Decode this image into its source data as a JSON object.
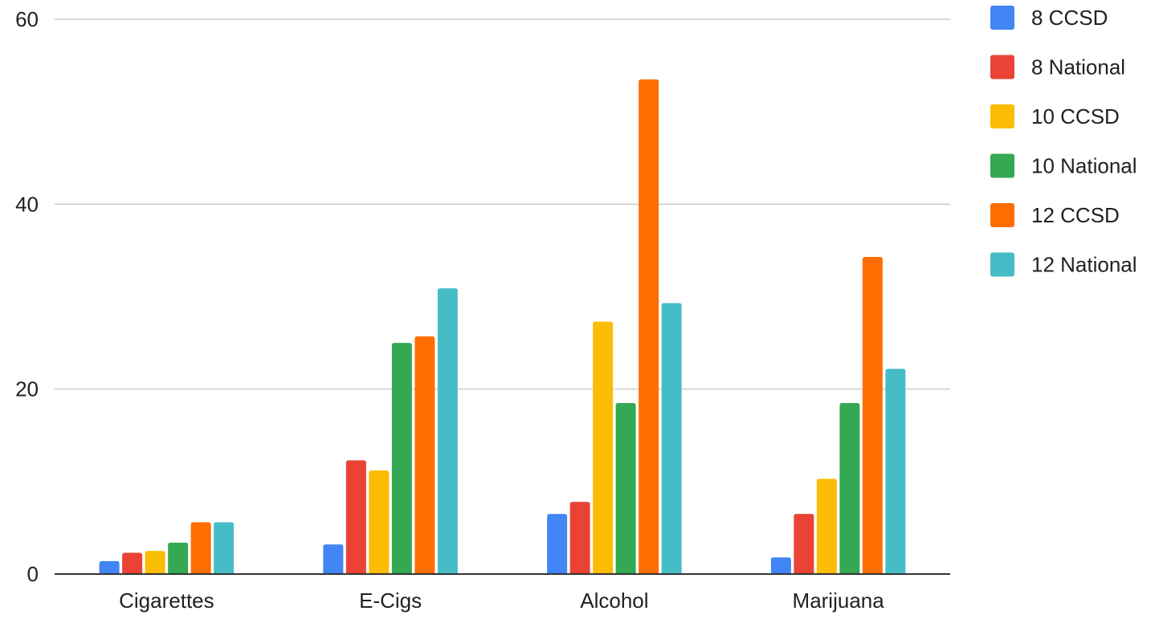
{
  "chart_data": {
    "type": "bar",
    "title": "",
    "xlabel": "",
    "ylabel": "",
    "categories": [
      "Cigarettes",
      "E-Cigs",
      "Alcohol",
      "Marijuana"
    ],
    "ylim": [
      0,
      60
    ],
    "yticks": [
      0,
      20,
      40,
      60
    ],
    "grid": true,
    "legend_position": "right",
    "series": [
      {
        "name": "8 CCSD",
        "color": "#4285f4",
        "values": [
          1.4,
          3.2,
          6.5,
          1.8
        ]
      },
      {
        "name": "8 National",
        "color": "#ea4335",
        "values": [
          2.3,
          12.3,
          7.8,
          6.5
        ]
      },
      {
        "name": "10 CCSD",
        "color": "#fbbc04",
        "values": [
          2.5,
          11.2,
          27.3,
          10.3
        ]
      },
      {
        "name": "10 National",
        "color": "#34a853",
        "values": [
          3.4,
          25.0,
          18.5,
          18.5
        ]
      },
      {
        "name": "12 CCSD",
        "color": "#ff6d01",
        "values": [
          5.6,
          25.7,
          53.5,
          34.3
        ]
      },
      {
        "name": "12 National",
        "color": "#46bdc6",
        "values": [
          5.6,
          30.9,
          29.3,
          22.2
        ]
      }
    ]
  }
}
